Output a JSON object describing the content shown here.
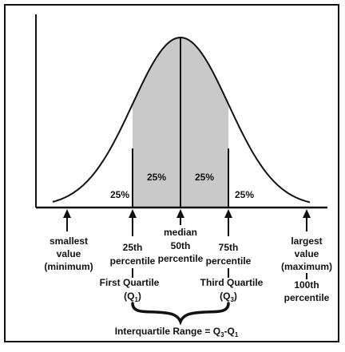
{
  "regions": {
    "left_tail": "25%",
    "q1_to_median": "25%",
    "median_to_q3": "25%",
    "right_tail": "25%"
  },
  "markers": {
    "minimum": [
      "smallest",
      "value",
      "(minimum)"
    ],
    "q1": [
      "25th",
      "percentile"
    ],
    "median": [
      "median",
      "50th",
      "percentile"
    ],
    "q3": [
      "75th",
      "percentile"
    ],
    "maximum": [
      "largest",
      "value",
      "(maximum)",
      "100th",
      "percentile"
    ]
  },
  "quartiles": {
    "first": {
      "label": "First Quartile",
      "symbol_open": "(Q",
      "sub": "1",
      "symbol_close": ")"
    },
    "third": {
      "label": "Third Quartile",
      "symbol_open": "(Q",
      "sub": "3",
      "symbol_close": ")"
    }
  },
  "iqr": {
    "prefix": "Interquartile Range = Q",
    "mid": "-Q",
    "sub3": "3",
    "sub1": "1"
  },
  "colors": {
    "shaded": "#c9c9c9",
    "line": "#111111",
    "background": "#ffffff"
  }
}
